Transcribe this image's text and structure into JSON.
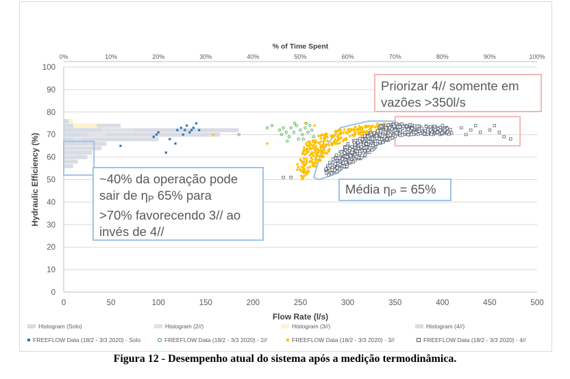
{
  "chart_data": {
    "type": "scatter",
    "title": "",
    "top_axis": {
      "title": "% of Time Spent",
      "ticks": [
        "0%",
        "10%",
        "20%",
        "30%",
        "40%",
        "50%",
        "60%",
        "70%",
        "80%",
        "90%",
        "100%"
      ],
      "range": [
        0,
        100
      ]
    },
    "xlabel": "Flow Rate (l/s)",
    "ylabel": "Hydraulic Efficiency (%)",
    "xlim": [
      0,
      500
    ],
    "ylim": [
      0,
      100
    ],
    "xticks": [
      0,
      50,
      100,
      150,
      200,
      250,
      300,
      350,
      400,
      450,
      500
    ],
    "yticks": [
      0,
      10,
      20,
      30,
      40,
      50,
      60,
      70,
      80,
      90,
      100
    ],
    "grid": "horizontal",
    "legend_position": "bottom",
    "histograms": [
      {
        "name": "Histogram (Solo)",
        "color": "#d6dce5",
        "bars": [
          [
            76,
            1
          ],
          [
            74,
            2
          ],
          [
            72,
            8
          ],
          [
            70,
            5
          ],
          [
            68,
            2
          ],
          [
            66,
            1
          ]
        ]
      },
      {
        "name": "Histogram (2//)",
        "color": "#dfe2e8",
        "bars": [
          [
            76,
            1
          ],
          [
            74,
            2
          ],
          [
            72,
            15
          ],
          [
            70,
            9
          ],
          [
            68,
            4
          ],
          [
            66,
            1
          ]
        ]
      },
      {
        "name": "Histogram (3//)",
        "color": "#fff2cc",
        "bars": [
          [
            76,
            2
          ],
          [
            74,
            7
          ],
          [
            72,
            6
          ],
          [
            70,
            4
          ],
          [
            68,
            1
          ]
        ]
      },
      {
        "name": "Histogram (4//)",
        "color": "#d9dce4",
        "bars": [
          [
            74,
            12
          ],
          [
            72,
            37
          ],
          [
            70,
            33
          ],
          [
            68,
            20
          ],
          [
            66,
            9
          ],
          [
            64,
            8
          ],
          [
            62,
            6
          ],
          [
            60,
            5
          ],
          [
            58,
            3
          ],
          [
            56,
            2
          ]
        ]
      }
    ],
    "series": [
      {
        "name": "FREEFLOW Data (18/2 - 3/3 2020) - Solo",
        "marker": "filled-square",
        "color": "#2e75b6",
        "points": [
          [
            60,
            65
          ],
          [
            95,
            69
          ],
          [
            98,
            70
          ],
          [
            100,
            71
          ],
          [
            108,
            62
          ],
          [
            112,
            68
          ],
          [
            120,
            72
          ],
          [
            124,
            73
          ],
          [
            128,
            72
          ],
          [
            130,
            74
          ],
          [
            133,
            71
          ],
          [
            137,
            73
          ],
          [
            140,
            75
          ],
          [
            143,
            72
          ],
          [
            126,
            70
          ],
          [
            118,
            66
          ],
          [
            135,
            72
          ]
        ]
      },
      {
        "name": "FREEFLOW Data (18/2 - 3/3 2020) - 2//",
        "marker": "hollow-circle",
        "color": "#2ca02c",
        "points": [
          [
            185,
            70
          ],
          [
            215,
            73
          ],
          [
            220,
            74
          ],
          [
            228,
            72
          ],
          [
            230,
            70
          ],
          [
            235,
            71
          ],
          [
            238,
            69
          ],
          [
            240,
            73
          ],
          [
            243,
            71
          ],
          [
            246,
            74
          ],
          [
            250,
            72
          ],
          [
            252,
            70
          ],
          [
            255,
            73
          ],
          [
            258,
            71
          ],
          [
            262,
            72
          ],
          [
            264,
            69
          ],
          [
            248,
            68
          ],
          [
            232,
            73
          ],
          [
            244,
            75
          ],
          [
            260,
            74
          ],
          [
            253,
            68
          ],
          [
            236,
            67
          ],
          [
            256,
            75
          ]
        ]
      },
      {
        "name": "FREEFLOW Data (18/2 - 3/3 2020) - 3//",
        "marker": "filled-diamond",
        "color": "#ffc000",
        "region": [
          [
            245,
            55
          ],
          [
            255,
            66
          ],
          [
            270,
            70
          ],
          [
            290,
            72
          ],
          [
            310,
            74
          ],
          [
            330,
            75
          ],
          [
            345,
            75
          ],
          [
            350,
            72
          ],
          [
            330,
            70
          ],
          [
            310,
            69
          ],
          [
            290,
            66
          ],
          [
            275,
            60
          ],
          [
            262,
            54
          ],
          [
            252,
            50
          ]
        ],
        "count": 320,
        "extra_points": [
          [
            158,
            70
          ],
          [
            215,
            66
          ],
          [
            255,
            75
          ],
          [
            265,
            74
          ]
        ]
      },
      {
        "name": "FREEFLOW Data (18/2 - 3/3 2020) - 4//",
        "marker": "hollow-square",
        "color": "#596475",
        "region": [
          [
            275,
            54
          ],
          [
            285,
            60
          ],
          [
            300,
            66
          ],
          [
            320,
            70
          ],
          [
            335,
            74
          ],
          [
            350,
            75
          ],
          [
            380,
            74
          ],
          [
            410,
            73
          ],
          [
            410,
            70
          ],
          [
            380,
            70
          ],
          [
            350,
            69
          ],
          [
            335,
            66
          ],
          [
            320,
            61
          ],
          [
            305,
            57
          ],
          [
            292,
            54
          ],
          [
            280,
            52
          ]
        ],
        "count": 520,
        "extra_points": [
          [
            232,
            51
          ],
          [
            240,
            51
          ],
          [
            420,
            73
          ],
          [
            430,
            72
          ],
          [
            440,
            71
          ],
          [
            450,
            72
          ],
          [
            460,
            71
          ],
          [
            465,
            69
          ],
          [
            472,
            68
          ],
          [
            455,
            74
          ],
          [
            435,
            74
          ],
          [
            425,
            70
          ],
          [
            400,
            74
          ]
        ]
      }
    ],
    "annotation_shapes": [
      {
        "kind": "rectangle",
        "color": "#9dc3e6",
        "from": [
          0,
          52
        ],
        "to": [
          32,
          67
        ]
      },
      {
        "kind": "polygon",
        "color": "#9dc3e6",
        "points": [
          [
            264,
            51
          ],
          [
            272,
            62
          ],
          [
            292,
            73
          ],
          [
            322,
            76
          ],
          [
            350,
            76
          ],
          [
            350,
            68
          ],
          [
            330,
            68
          ],
          [
            318,
            64
          ],
          [
            302,
            58
          ],
          [
            290,
            53
          ],
          [
            270,
            50
          ]
        ]
      },
      {
        "kind": "rectangle",
        "color": "#f4b6b6",
        "from": [
          350,
          65
        ],
        "to": [
          482,
          78
        ]
      }
    ]
  },
  "legend": {
    "row1": [
      "Histogram (Solo)",
      "Histogram (2//)",
      "Histogram (3//)",
      "Histogram (4//)"
    ],
    "row2": [
      "FREEFLOW Data (18/2 - 3/3 2020) - Solo",
      "FREEFLOW Data (18/2 - 3/3 2020) - 2//",
      "FREEFLOW Data (18/2 - 3/3 2020) - 3//",
      "FREEFLOW Data (18/2 - 3/3 2020) - 4//"
    ]
  },
  "callouts": {
    "left": {
      "line1": "~40% da operação pode",
      "line2a": "sair de ",
      "eta": "η",
      "sub": "P",
      "line2b": " 65% para",
      "line3": ">70% favorecendo 3// ao",
      "line4": "invés de 4//"
    },
    "mid": {
      "prefix": "Média ",
      "eta": "η",
      "sub": "P",
      "suffix": " = 65%"
    },
    "right": {
      "line1": "Priorizar 4// somente em",
      "line2": "vazões >350l/s"
    }
  },
  "caption": "Figura 12 - Desempenho atual do sistema após a medição termodinâmica."
}
